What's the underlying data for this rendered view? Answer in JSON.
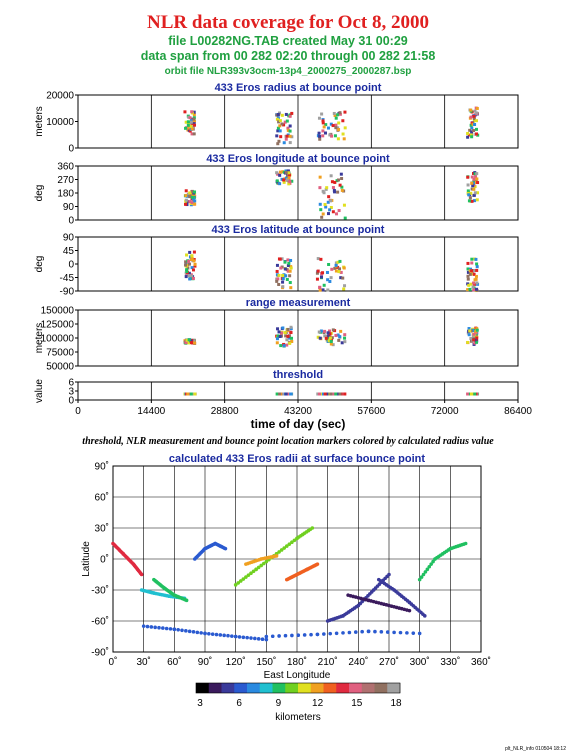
{
  "header": {
    "title": "NLR data coverage for Oct 8, 2000",
    "file_line": "file L00282NG.TAB created May 31 00:29",
    "span_line": "data span from 00 282 02:20 through 00 282 21:58",
    "orbit_line": "orbit file NLR393v3ocm-13p4_2000275_2000287.bsp"
  },
  "note": "threshold, NLR measurement and bounce point location markers colored by calculated radius value",
  "footer": "plt_NLR_info 010504 18:12",
  "colorbar": {
    "label": "kilometers",
    "ticks": [
      "3",
      "6",
      "9",
      "12",
      "15",
      "18"
    ],
    "colors": [
      "#000000",
      "#3a1a5c",
      "#3a3a9a",
      "#2a5ad0",
      "#2a8ae0",
      "#20c0d0",
      "#20c060",
      "#70d020",
      "#e0e020",
      "#f0a020",
      "#f06020",
      "#e02a40",
      "#e06080",
      "#b07070",
      "#907060",
      "#a0a0a0"
    ]
  },
  "chart_data": [
    {
      "type": "scatter",
      "title": "433 Eros radius at bounce point",
      "ylabel": "meters",
      "ylim": [
        0,
        25000
      ],
      "yticks": [
        "0",
        "10000",
        "20000"
      ],
      "xlim": [
        0,
        86400
      ],
      "segments": [
        {
          "x": [
            21000,
            23000
          ],
          "y": [
            6000,
            18000
          ]
        },
        {
          "x": [
            39000,
            42000
          ],
          "y": [
            2000,
            17000
          ]
        },
        {
          "x": [
            47000,
            52500
          ],
          "y": [
            4000,
            17000
          ]
        },
        {
          "x": [
            76500,
            78500
          ],
          "y": [
            5000,
            19000
          ]
        }
      ]
    },
    {
      "type": "scatter",
      "title": "433 Eros longitude at bounce point",
      "ylabel": "deg",
      "ylim": [
        0,
        360
      ],
      "yticks": [
        "0",
        "90",
        "180",
        "270",
        "360"
      ],
      "xlim": [
        0,
        86400
      ],
      "segments": [
        {
          "x": [
            21000,
            23000
          ],
          "y": [
            100,
            200
          ]
        },
        {
          "x": [
            39000,
            42000
          ],
          "y": [
            240,
            330
          ]
        },
        {
          "x": [
            47000,
            52500
          ],
          "y": [
            0,
            340
          ]
        },
        {
          "x": [
            76500,
            78500
          ],
          "y": [
            120,
            320
          ]
        }
      ]
    },
    {
      "type": "scatter",
      "title": "433 Eros latitude at bounce point",
      "ylabel": "deg",
      "ylim": [
        -90,
        90
      ],
      "yticks": [
        "-90",
        "-45",
        "0",
        "45",
        "90"
      ],
      "xlim": [
        0,
        86400
      ],
      "segments": [
        {
          "x": [
            21000,
            23000
          ],
          "y": [
            -50,
            40
          ]
        },
        {
          "x": [
            39000,
            42000
          ],
          "y": [
            -80,
            20
          ]
        },
        {
          "x": [
            47000,
            52500
          ],
          "y": [
            -90,
            25
          ]
        },
        {
          "x": [
            76500,
            78500
          ],
          "y": [
            -90,
            20
          ]
        }
      ]
    },
    {
      "type": "scatter",
      "title": "range measurement",
      "ylabel": "meters",
      "ylim": [
        50000,
        150000
      ],
      "yticks": [
        "50000",
        "75000",
        "100000",
        "125000",
        "150000"
      ],
      "xlim": [
        0,
        86400
      ],
      "segments": [
        {
          "x": [
            21000,
            23000
          ],
          "y": [
            90000,
            97000
          ]
        },
        {
          "x": [
            39000,
            42000
          ],
          "y": [
            85000,
            120000
          ]
        },
        {
          "x": [
            47000,
            52500
          ],
          "y": [
            88000,
            115000
          ]
        },
        {
          "x": [
            76500,
            78500
          ],
          "y": [
            88000,
            118000
          ]
        }
      ]
    },
    {
      "type": "scatter",
      "title": "threshold",
      "ylabel": "value",
      "ylim": [
        0,
        6
      ],
      "yticks": [
        "0",
        "3",
        "6"
      ],
      "xlim": [
        0,
        86400
      ],
      "xticks": [
        "0",
        "14400",
        "28800",
        "43200",
        "57600",
        "72000",
        "86400"
      ],
      "xlabel": "time of day (sec)",
      "segments": [
        {
          "x": [
            21000,
            23000
          ],
          "y": [
            2,
            2
          ]
        },
        {
          "x": [
            39000,
            42000
          ],
          "y": [
            2,
            2
          ]
        },
        {
          "x": [
            47000,
            52500
          ],
          "y": [
            2,
            2
          ]
        },
        {
          "x": [
            76500,
            78500
          ],
          "y": [
            2,
            2
          ]
        }
      ]
    },
    {
      "type": "scatter",
      "title": "calculated 433 Eros radii at surface bounce point",
      "xlabel": "East Longitude",
      "ylabel": "Latitude",
      "xlim": [
        0,
        360
      ],
      "ylim": [
        -90,
        90
      ],
      "xticks": [
        "0˚",
        "30˚",
        "60˚",
        "90˚",
        "120˚",
        "150˚",
        "180˚",
        "210˚",
        "240˚",
        "270˚",
        "300˚",
        "330˚",
        "360˚"
      ],
      "yticks": [
        "-90˚",
        "-60˚",
        "-30˚",
        "0˚",
        "30˚",
        "60˚",
        "90˚"
      ],
      "tracks": [
        {
          "lon": [
            0,
            10,
            20,
            28
          ],
          "lat": [
            15,
            5,
            -5,
            -15
          ],
          "km": 14
        },
        {
          "lon": [
            28,
            40,
            55,
            70
          ],
          "lat": [
            -30,
            -33,
            -36,
            -38
          ],
          "km": 8
        },
        {
          "lon": [
            40,
            50,
            60,
            72
          ],
          "lat": [
            -20,
            -28,
            -35,
            -40
          ],
          "km": 9
        },
        {
          "lon": [
            120,
            140,
            160,
            180,
            195
          ],
          "lat": [
            -25,
            -10,
            5,
            20,
            30
          ],
          "km": 10
        },
        {
          "lon": [
            130,
            145,
            160
          ],
          "lat": [
            -5,
            0,
            3
          ],
          "km": 12
        },
        {
          "lon": [
            80,
            90,
            100,
            110
          ],
          "lat": [
            0,
            10,
            15,
            10
          ],
          "km": 6
        },
        {
          "lon": [
            170,
            180,
            190,
            200
          ],
          "lat": [
            -20,
            -15,
            -10,
            -5
          ],
          "km": 13
        },
        {
          "lon": [
            210,
            225,
            240,
            255,
            270
          ],
          "lat": [
            -60,
            -55,
            -45,
            -30,
            -15
          ],
          "km": 5
        },
        {
          "lon": [
            230,
            250,
            270,
            290
          ],
          "lat": [
            -35,
            -40,
            -45,
            -50
          ],
          "km": 4
        },
        {
          "lon": [
            260,
            275,
            290,
            305
          ],
          "lat": [
            -20,
            -30,
            -42,
            -55
          ],
          "km": 5
        },
        {
          "lon": [
            300,
            315,
            330,
            345
          ],
          "lat": [
            -20,
            0,
            10,
            15
          ],
          "km": 9
        },
        {
          "lon": [
            150,
            200,
            250,
            300
          ],
          "lat": [
            -75,
            -73,
            -70,
            -72
          ],
          "km": 6
        },
        {
          "lon": [
            30,
            60,
            90,
            120,
            150
          ],
          "lat": [
            -65,
            -68,
            -72,
            -75,
            -78
          ],
          "km": 6
        }
      ]
    }
  ]
}
